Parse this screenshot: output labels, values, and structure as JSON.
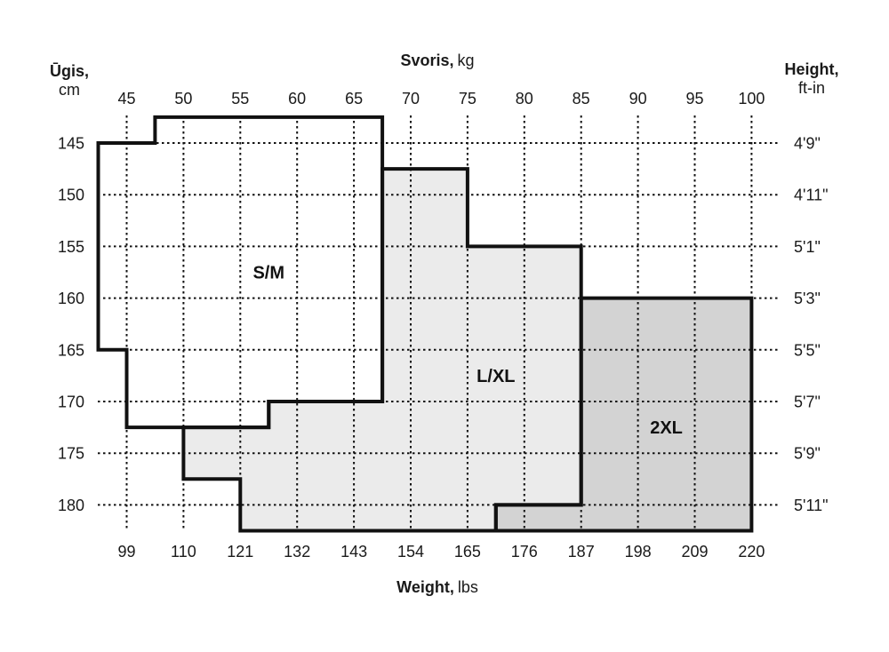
{
  "page": {
    "background": "#ffffff",
    "text_color": "#1a1a1a"
  },
  "chart_data": {
    "type": "area",
    "subtype": "stepped-size-chart-regions",
    "axes": {
      "top": {
        "title_bold": "Svoris,",
        "title_unit": "kg",
        "ticks": [
          45,
          50,
          55,
          60,
          65,
          70,
          75,
          80,
          85,
          90,
          95,
          100
        ]
      },
      "bottom": {
        "title_bold": "Weight,",
        "title_unit": "lbs",
        "ticks": [
          99,
          110,
          121,
          132,
          143,
          154,
          165,
          176,
          187,
          198,
          209,
          220
        ]
      },
      "left": {
        "title_bold": "Ūgis,",
        "title_unit": "cm",
        "ticks": [
          145,
          150,
          155,
          160,
          165,
          170,
          175,
          180
        ]
      },
      "right": {
        "title_bold": "Height,",
        "title_unit": "ft-in",
        "ticks": [
          "4'9\"",
          "4'11\"",
          "5'1\"",
          "5'3\"",
          "5'5\"",
          "5'7\"",
          "5'9\"",
          "5'11\""
        ]
      }
    },
    "x_domain_kg": [
      42.5,
      100
    ],
    "y_domain_cm": [
      142.5,
      182.5
    ],
    "grid": {
      "show": true,
      "style": "dotted",
      "color": "#111111"
    },
    "outline_color": "#111111",
    "label_color": "#111111",
    "tick_color": "#1a1a1a",
    "regions": [
      {
        "label": "S/M",
        "fill": "#ffffff",
        "label_at": {
          "kg": 57.5,
          "cm": 157.5
        },
        "kg_range": [
          42.5,
          67.5
        ],
        "cm_range": [
          142.5,
          172.5
        ],
        "vertices_kg_cm": [
          [
            47.5,
            142.5
          ],
          [
            67.5,
            142.5
          ],
          [
            67.5,
            170
          ],
          [
            57.5,
            170
          ],
          [
            57.5,
            172.5
          ],
          [
            45,
            172.5
          ],
          [
            45,
            165
          ],
          [
            42.5,
            165
          ],
          [
            42.5,
            145
          ],
          [
            47.5,
            145
          ]
        ]
      },
      {
        "label": "L/XL",
        "fill": "#ebebeb",
        "label_at": {
          "kg": 77.5,
          "cm": 167.5
        },
        "kg_range": [
          50,
          85
        ],
        "cm_range": [
          147.5,
          182.5
        ],
        "vertices_kg_cm": [
          [
            67.5,
            147.5
          ],
          [
            75,
            147.5
          ],
          [
            75,
            155
          ],
          [
            85,
            155
          ],
          [
            85,
            180
          ],
          [
            77.5,
            180
          ],
          [
            77.5,
            182.5
          ],
          [
            55,
            182.5
          ],
          [
            55,
            177.5
          ],
          [
            50,
            177.5
          ],
          [
            50,
            172.5
          ],
          [
            57.5,
            172.5
          ],
          [
            57.5,
            170
          ],
          [
            67.5,
            170
          ]
        ]
      },
      {
        "label": "2XL",
        "fill": "#d3d3d3",
        "label_at": {
          "kg": 92.5,
          "cm": 172.5
        },
        "kg_range": [
          77.5,
          100
        ],
        "cm_range": [
          160,
          182.5
        ],
        "vertices_kg_cm": [
          [
            85,
            160
          ],
          [
            100,
            160
          ],
          [
            100,
            182.5
          ],
          [
            77.5,
            182.5
          ],
          [
            77.5,
            180
          ],
          [
            85,
            180
          ]
        ]
      }
    ]
  }
}
